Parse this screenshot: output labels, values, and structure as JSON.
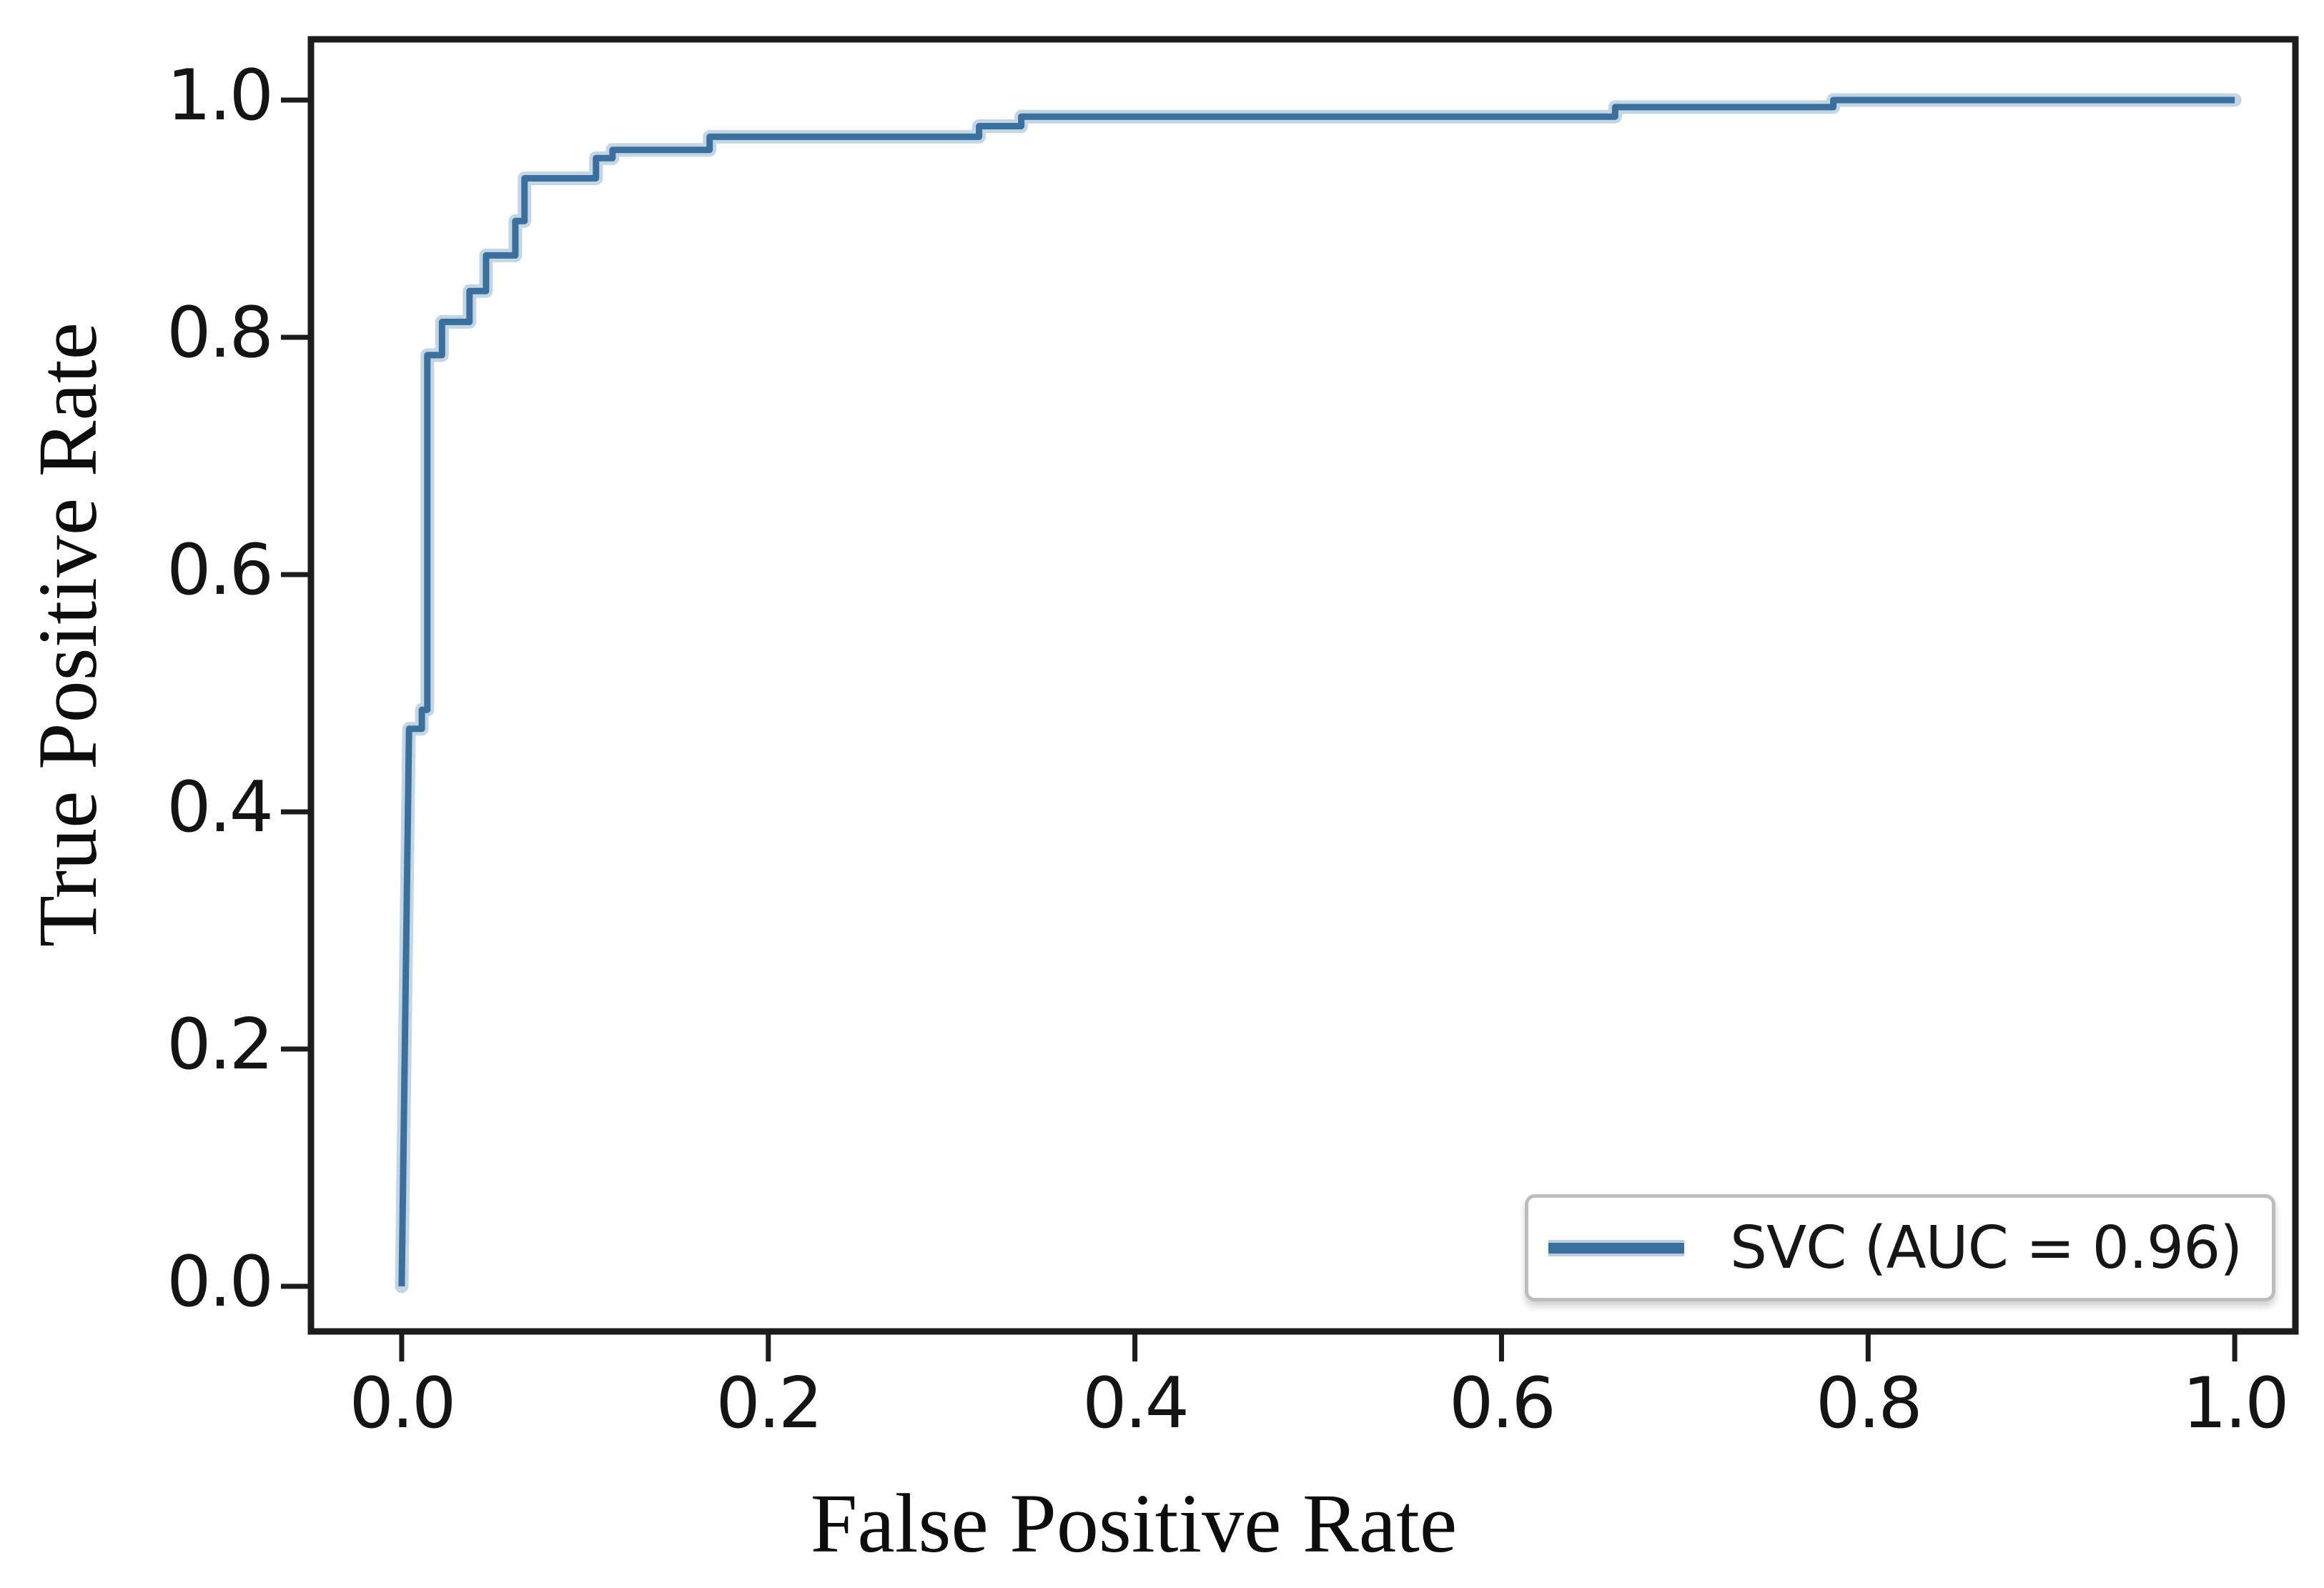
{
  "chart_data": {
    "type": "line",
    "subtype": "roc-step-curve",
    "title": "",
    "xlabel": "False Positive Rate",
    "ylabel": "True Positive Rate",
    "xlim": [
      -0.0495,
      1.0331
    ],
    "ylim": [
      -0.038,
      1.0512
    ],
    "grid": false,
    "legend_position": "lower right",
    "x_ticks": [
      0.0,
      0.2,
      0.4,
      0.6,
      0.8,
      1.0
    ],
    "y_ticks": [
      0.0,
      0.2,
      0.4,
      0.6,
      0.8,
      1.0
    ],
    "x_tick_labels": [
      "0.0",
      "0.2",
      "0.4",
      "0.6",
      "0.8",
      "1.0"
    ],
    "y_tick_labels": [
      "0.0",
      "0.2",
      "0.4",
      "0.6",
      "0.8",
      "1.0"
    ],
    "series": [
      {
        "name": "SVC (AUC = 0.96)",
        "model": "SVC",
        "auc": 0.96,
        "color": "#3a6f9e",
        "points": [
          [
            0.0,
            0.0
          ],
          [
            0.004,
            0.47
          ],
          [
            0.011,
            0.47
          ],
          [
            0.011,
            0.486
          ],
          [
            0.014,
            0.486
          ],
          [
            0.014,
            0.785
          ],
          [
            0.022,
            0.785
          ],
          [
            0.022,
            0.813
          ],
          [
            0.037,
            0.813
          ],
          [
            0.037,
            0.839
          ],
          [
            0.046,
            0.839
          ],
          [
            0.046,
            0.869
          ],
          [
            0.062,
            0.869
          ],
          [
            0.062,
            0.898
          ],
          [
            0.067,
            0.898
          ],
          [
            0.067,
            0.934
          ],
          [
            0.106,
            0.934
          ],
          [
            0.106,
            0.951
          ],
          [
            0.115,
            0.951
          ],
          [
            0.115,
            0.958
          ],
          [
            0.168,
            0.958
          ],
          [
            0.168,
            0.969
          ],
          [
            0.315,
            0.969
          ],
          [
            0.315,
            0.978
          ],
          [
            0.338,
            0.978
          ],
          [
            0.338,
            0.986
          ],
          [
            0.662,
            0.986
          ],
          [
            0.662,
            0.994
          ],
          [
            0.781,
            0.994
          ],
          [
            0.781,
            1.0
          ],
          [
            1.0,
            1.0
          ]
        ]
      }
    ]
  },
  "colors": {
    "curve": "#3a6f9e",
    "curve_halo": "#7ba3c4",
    "spine": "#1c1c1c",
    "legend_border": "#bdbdbd",
    "background": "#ffffff"
  }
}
